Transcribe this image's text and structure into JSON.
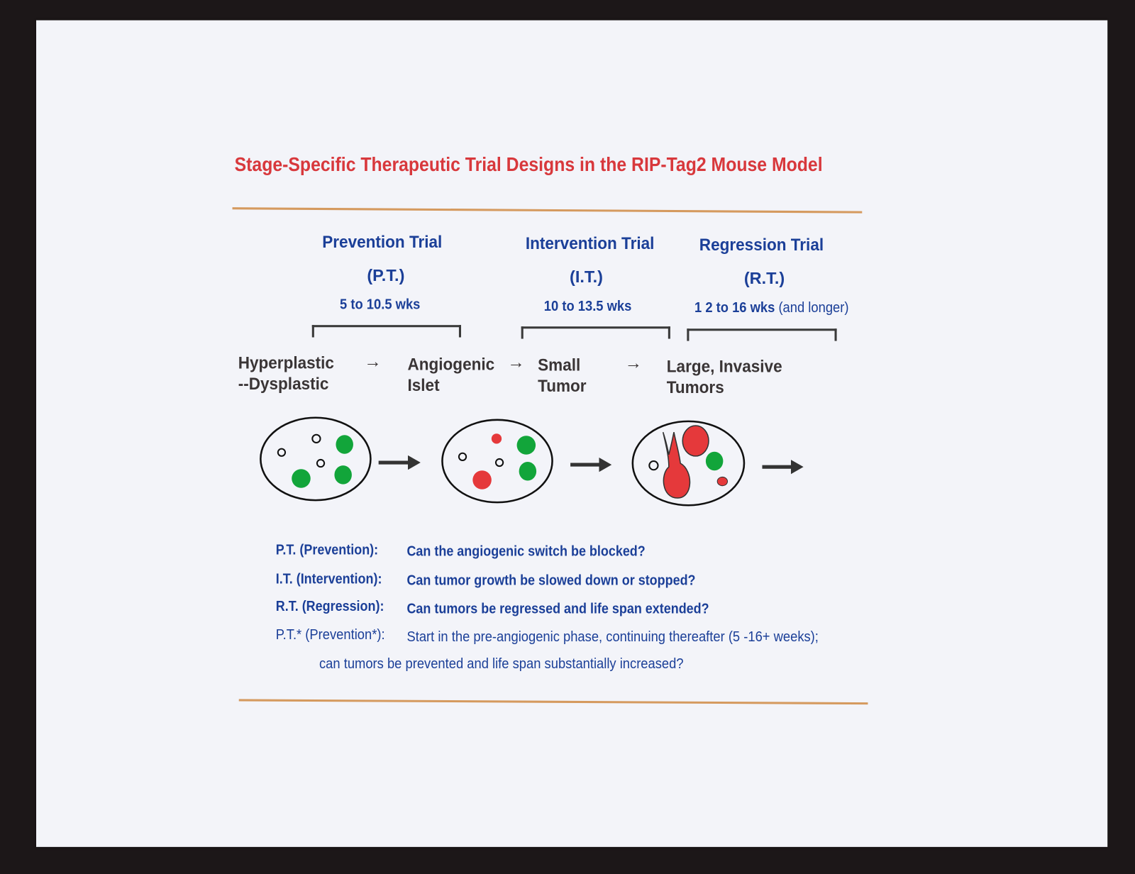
{
  "title": "Stage-Specific Therapeutic Trial Designs in the RIP-Tag2 Mouse Model",
  "trials": [
    {
      "name": "Prevention Trial",
      "abbr": "(P.T.)",
      "weeks": "5 to 10.5 wks",
      "weeks_note": ""
    },
    {
      "name": "Intervention Trial",
      "abbr": "(I.T.)",
      "weeks": "10 to 13.5 wks",
      "weeks_note": ""
    },
    {
      "name": "Regression Trial",
      "abbr": "(R.T.)",
      "weeks": "1 2 to 16 wks",
      "weeks_note": " (and longer)"
    }
  ],
  "stages": [
    {
      "line1": "Hyperplastic",
      "line2": "--Dysplastic"
    },
    {
      "line1": "Angiogenic",
      "line2": "Islet"
    },
    {
      "line1": "Small",
      "line2": "Tumor"
    },
    {
      "line1": "Large, Invasive",
      "line2": " Tumors"
    }
  ],
  "stage_arrow": "→",
  "questions": [
    {
      "label": "P.T. (Prevention):",
      "text": "Can the angiogenic switch be blocked?"
    },
    {
      "label": "I.T.  (Intervention):",
      "text": "Can tumor growth be slowed down or stopped?"
    },
    {
      "label": "R.T. (Regression):",
      "text": "Can tumors be regressed and life span extended?"
    }
  ],
  "footnote": {
    "label": "P.T.* (Prevention*):",
    "line1": "Start in the pre-angiogenic phase, continuing thereafter (5 -16+ weeks);",
    "line2": "can tumors be prevented and life span substantially increased?"
  },
  "colors": {
    "title": "#d8383c",
    "heading": "#1b3f98",
    "rule": "#d59a5f",
    "normal_islet": "#12a53a",
    "angiogenic": "#e5393b"
  }
}
